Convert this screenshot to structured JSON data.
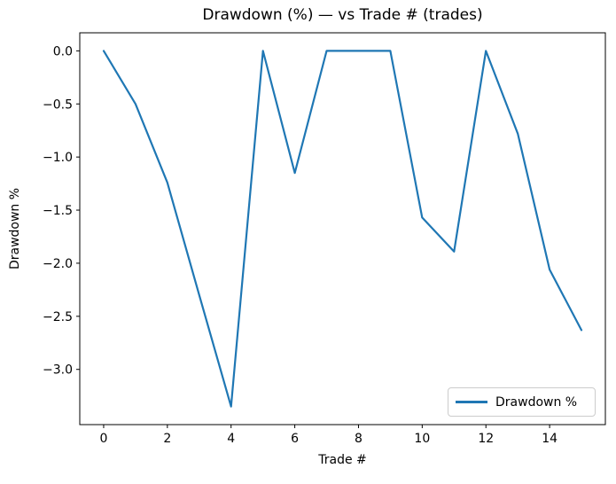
{
  "figure": {
    "background_color": "#ffffff",
    "spine_color": "#000000",
    "legend_border_color": "#cccccc"
  },
  "chart_data": {
    "type": "line",
    "title": "Drawdown (%) — vs Trade # (trades)",
    "xlabel": "Trade #",
    "ylabel": "Drawdown %",
    "x": [
      0,
      1,
      2,
      3,
      4,
      5,
      6,
      7,
      8,
      9,
      10,
      11,
      12,
      13,
      14,
      15
    ],
    "y": [
      0.0,
      -0.5,
      -1.24,
      -2.3,
      -3.35,
      0.0,
      -1.15,
      0.0,
      0.0,
      0.0,
      -1.57,
      -1.89,
      0.0,
      -0.78,
      -2.06,
      -2.63
    ],
    "series": [
      {
        "name": "Drawdown %",
        "color": "#1f77b4"
      }
    ],
    "xlim": [
      -0.75,
      15.75
    ],
    "ylim": [
      -3.52,
      0.17
    ],
    "xticks": {
      "values": [
        0,
        2,
        4,
        6,
        8,
        10,
        12,
        14
      ],
      "labels": [
        "0",
        "2",
        "4",
        "6",
        "8",
        "10",
        "12",
        "14"
      ]
    },
    "yticks": {
      "values": [
        0.0,
        -0.5,
        -1.0,
        -1.5,
        -2.0,
        -2.5,
        -3.0
      ],
      "labels": [
        "0.0",
        "−0.5",
        "−1.0",
        "−1.5",
        "−2.0",
        "−2.5",
        "−3.0"
      ]
    },
    "grid": false,
    "legend": {
      "position": "lower right",
      "entries": [
        "Drawdown %"
      ]
    }
  }
}
